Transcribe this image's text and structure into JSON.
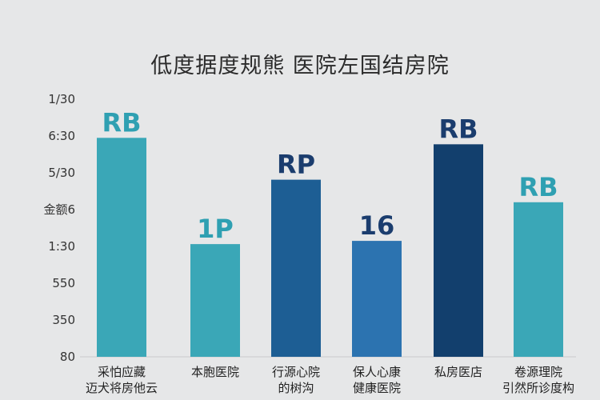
{
  "chart_data": {
    "type": "bar",
    "title": "低度据度规熊 医院左国结房院",
    "xlabel": "",
    "ylabel": "",
    "y_tick_labels": [
      "1/30",
      "6:30",
      "5/30",
      "金额6",
      "1:30",
      "550",
      "350",
      "80"
    ],
    "categories": [
      [
        "采怕应藏",
        "迈犬将房他云"
      ],
      [
        "本胞医院"
      ],
      [
        "行源心院",
        "的树沟"
      ],
      [
        "保人心康",
        "健康医院"
      ],
      [
        "私房医店"
      ],
      [
        "卷源理院",
        "引然所诊度构"
      ]
    ],
    "values": [
      6.8,
      3.5,
      5.5,
      3.6,
      6.6,
      4.8
    ],
    "data_labels": [
      "RB",
      "1P",
      "RP",
      "16",
      "RB",
      "RB"
    ],
    "ylim": [
      0,
      8
    ],
    "colors": [
      "#3aa7b7",
      "#3aa7b7",
      "#1d5e94",
      "#2c73b0",
      "#123f6d",
      "#3aa7b7"
    ],
    "label_colors": [
      "#2fa0b2",
      "#2fa0b2",
      "#1b3d6e",
      "#1b3d6e",
      "#1b3d6e",
      "#2fa0b2"
    ],
    "grid": false,
    "legend": "none"
  }
}
